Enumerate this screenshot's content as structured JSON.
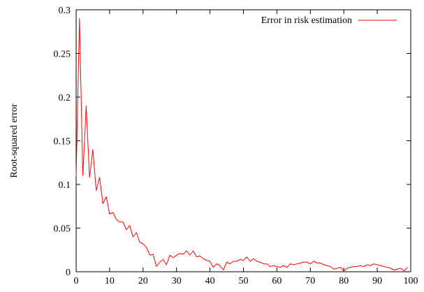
{
  "chart_data": {
    "type": "line",
    "title": "",
    "xlabel": "",
    "ylabel": "Root-squared error",
    "xlim": [
      0,
      100
    ],
    "ylim": [
      0,
      0.3
    ],
    "x_ticks": [
      0,
      10,
      20,
      30,
      40,
      50,
      60,
      70,
      80,
      90,
      100
    ],
    "y_ticks": [
      0,
      0.05,
      0.1,
      0.15,
      0.2,
      0.25,
      0.3
    ],
    "x_tick_labels": [
      "0",
      "10",
      "20",
      "30",
      "40",
      "50",
      "60",
      "70",
      "80",
      "90",
      "100"
    ],
    "y_tick_labels": [
      "0",
      "0.05",
      "0.1",
      "0.15",
      "0.2",
      "0.25",
      "0.3"
    ],
    "grid": false,
    "legend_position": "top-right",
    "series": [
      {
        "name": "Error in risk estimation",
        "color": "#ff0000",
        "x": [
          0,
          1,
          2,
          3,
          4,
          5,
          6,
          7,
          8,
          9,
          10,
          11,
          12,
          13,
          14,
          15,
          16,
          17,
          18,
          19,
          20,
          21,
          22,
          23,
          24,
          25,
          26,
          27,
          28,
          29,
          30,
          31,
          32,
          33,
          34,
          35,
          36,
          37,
          38,
          39,
          40,
          41,
          42,
          43,
          44,
          45,
          46,
          47,
          48,
          49,
          50,
          51,
          52,
          53,
          54,
          55,
          56,
          57,
          58,
          59,
          60,
          61,
          62,
          63,
          64,
          65,
          66,
          67,
          68,
          69,
          70,
          71,
          72,
          73,
          74,
          75,
          76,
          77,
          78,
          79,
          80,
          81,
          82,
          83,
          84,
          85,
          86,
          87,
          88,
          89,
          90,
          91,
          92,
          93,
          94,
          95,
          96,
          97,
          98,
          99
        ],
        "y": [
          0.11,
          0.29,
          0.11,
          0.19,
          0.108,
          0.14,
          0.093,
          0.108,
          0.078,
          0.086,
          0.066,
          0.068,
          0.06,
          0.057,
          0.057,
          0.048,
          0.053,
          0.04,
          0.045,
          0.034,
          0.032,
          0.028,
          0.019,
          0.02,
          0.006,
          0.011,
          0.014,
          0.008,
          0.019,
          0.016,
          0.019,
          0.021,
          0.02,
          0.024,
          0.019,
          0.024,
          0.017,
          0.018,
          0.015,
          0.013,
          0.012,
          0.005,
          0.009,
          0.007,
          0.002,
          0.011,
          0.009,
          0.012,
          0.012,
          0.014,
          0.013,
          0.017,
          0.012,
          0.015,
          0.012,
          0.011,
          0.009,
          0.009,
          0.006,
          0.007,
          0.006,
          0.005,
          0.007,
          0.005,
          0.009,
          0.008,
          0.009,
          0.01,
          0.011,
          0.011,
          0.009,
          0.012,
          0.01,
          0.01,
          0.008,
          0.007,
          0.006,
          0.003,
          0.004,
          0.005,
          0.001,
          0.004,
          0.005,
          0.006,
          0.006,
          0.007,
          0.006,
          0.008,
          0.007,
          0.009,
          0.008,
          0.007,
          0.006,
          0.005,
          0.004,
          0.002,
          0.003,
          0.004,
          0.001,
          0.005
        ]
      }
    ]
  }
}
